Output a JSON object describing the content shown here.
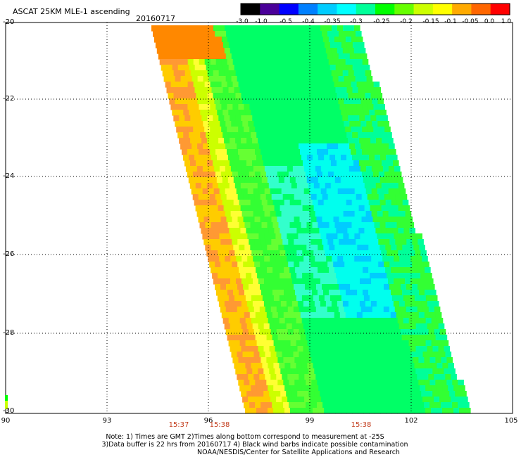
{
  "header": {
    "title": "ASCAT 25KM MLE-1 ascending",
    "date": "20160717"
  },
  "colorbar": {
    "labels": [
      "-3.0",
      "-1.0",
      "-0.5",
      "-0.4",
      "-0.35",
      "-0.3",
      "-0.25",
      "-0.2",
      "-0.15",
      "-0.1",
      "-0.05",
      "0.0",
      "1.0"
    ],
    "colors": [
      "#000000",
      "#4a0099",
      "#0000ff",
      "#0080ff",
      "#00ccff",
      "#00ffff",
      "#00ff99",
      "#00ff00",
      "#66ff00",
      "#ccff00",
      "#ffff00",
      "#ffaa00",
      "#ff6600",
      "#ff0000"
    ]
  },
  "axes": {
    "lat_labels": [
      "-20",
      "-22",
      "-24",
      "-26",
      "-28",
      "-30"
    ],
    "lon_labels": [
      "90",
      "93",
      "96",
      "99",
      "102",
      "105"
    ],
    "time_labels": [
      "15:37",
      "15:38",
      "15:38"
    ]
  },
  "notes": {
    "line1": "Note: 1) Times are GMT 2)Times along bottom correspond to measurement at -25S",
    "line2": "3)Data buffer is 22 hrs from 20160717 4) Black wind barbs indicate possible contamination",
    "line3": "NOAA/NESDIS/Center for Satellite Applications and Research"
  }
}
